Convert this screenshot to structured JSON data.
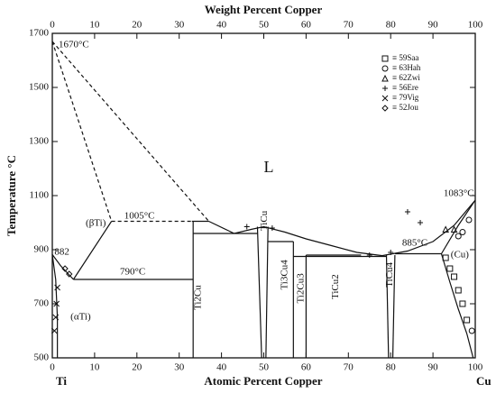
{
  "chart_data": {
    "type": "line",
    "title_top": "Weight Percent Copper",
    "xlabel": "Atomic Percent Copper",
    "ylabel": "Temperature °C",
    "end_labels": [
      "Ti",
      "Cu"
    ],
    "xlim": [
      0,
      100
    ],
    "xticks": [
      0,
      10,
      20,
      30,
      40,
      50,
      60,
      70,
      80,
      90,
      100
    ],
    "x2lim": [
      0,
      100
    ],
    "x2ticks": [
      0,
      10,
      20,
      30,
      40,
      50,
      60,
      70,
      80,
      90,
      100
    ],
    "ylim": [
      500,
      1700
    ],
    "yticks": [
      500,
      700,
      900,
      1100,
      1300,
      1500,
      1700
    ],
    "color": "#111111",
    "legend": "upper right",
    "lines": [
      {
        "style": "dashed",
        "x": [
          0,
          14
        ],
        "y": [
          1670,
          1005
        ]
      },
      {
        "style": "dashed",
        "x": [
          0,
          37
        ],
        "y": [
          1670,
          1005
        ]
      },
      {
        "style": "dashed",
        "x": [
          14,
          33
        ],
        "y": [
          1005,
          1005
        ]
      },
      {
        "style": "solid",
        "x": [
          33,
          37
        ],
        "y": [
          1005,
          1005
        ]
      },
      {
        "style": "solid",
        "x": [
          37,
          43,
          47,
          50,
          55,
          60,
          66,
          72,
          78,
          84,
          90,
          95,
          100
        ],
        "y": [
          1005,
          960,
          975,
          985,
          965,
          940,
          915,
          890,
          878,
          895,
          930,
          990,
          1083
        ]
      },
      {
        "style": "solid",
        "x": [
          33.3,
          33.3
        ],
        "y": [
          500,
          1005
        ]
      },
      {
        "style": "solid",
        "x": [
          33.3,
          48.5
        ],
        "y": [
          960,
          960
        ]
      },
      {
        "style": "solid",
        "x": [
          48.5,
          49.5
        ],
        "y": [
          985,
          500
        ]
      },
      {
        "style": "solid",
        "x": [
          51,
          50.5
        ],
        "y": [
          985,
          500
        ]
      },
      {
        "style": "solid",
        "x": [
          51,
          57
        ],
        "y": [
          930,
          930
        ]
      },
      {
        "style": "solid",
        "x": [
          57,
          57
        ],
        "y": [
          930,
          500
        ]
      },
      {
        "style": "solid",
        "x": [
          60,
          60
        ],
        "y": [
          880,
          500
        ]
      },
      {
        "style": "solid",
        "x": [
          57,
          79
        ],
        "y": [
          875,
          875
        ]
      },
      {
        "style": "solid",
        "x": [
          60,
          73
        ],
        "y": [
          880,
          880
        ]
      },
      {
        "style": "solid",
        "x": [
          79,
          79.5
        ],
        "y": [
          880,
          500
        ]
      },
      {
        "style": "solid",
        "x": [
          81,
          80.5
        ],
        "y": [
          880,
          500
        ]
      },
      {
        "style": "solid",
        "x": [
          81,
          92
        ],
        "y": [
          885,
          885
        ]
      },
      {
        "style": "solid",
        "x": [
          92,
          94,
          96,
          98,
          99.5
        ],
        "y": [
          885,
          780,
          680,
          590,
          500
        ]
      },
      {
        "style": "solid",
        "x": [
          92,
          96,
          100
        ],
        "y": [
          885,
          990,
          1083
        ]
      },
      {
        "style": "solid",
        "x": [
          5,
          33.3
        ],
        "y": [
          790,
          790
        ]
      },
      {
        "style": "solid",
        "x": [
          0,
          2,
          5
        ],
        "y": [
          882,
          840,
          790
        ]
      },
      {
        "style": "solid",
        "x": [
          0,
          0.8,
          1.2,
          1.2
        ],
        "y": [
          882,
          790,
          650,
          500
        ]
      },
      {
        "style": "solid",
        "x": [
          5,
          14
        ],
        "y": [
          790,
          1005
        ]
      }
    ],
    "series": [
      {
        "name": "≡ 59Saa",
        "marker": "square",
        "x": [
          93,
          94,
          95,
          96,
          97,
          98
        ],
        "y": [
          870,
          830,
          800,
          750,
          700,
          640
        ]
      },
      {
        "name": "≡ 63Hah",
        "marker": "circle",
        "x": [
          96,
          97,
          98.5,
          99.2
        ],
        "y": [
          950,
          965,
          1010,
          600
        ]
      },
      {
        "name": "≡ 62Zwi",
        "marker": "triangle",
        "x": [
          93,
          95
        ],
        "y": [
          975,
          975
        ]
      },
      {
        "name": "≡ 56Ere",
        "marker": "plus",
        "x": [
          46,
          52,
          75,
          80,
          84,
          87
        ],
        "y": [
          985,
          980,
          880,
          890,
          1040,
          1000
        ]
      },
      {
        "name": "≡ 79Vig",
        "marker": "x",
        "x": [
          0.5,
          0.8,
          1,
          1.2
        ],
        "y": [
          600,
          650,
          700,
          760
        ]
      },
      {
        "name": "≡ 52Jou",
        "marker": "diamond",
        "x": [
          3,
          4
        ],
        "y": [
          830,
          810
        ]
      }
    ],
    "annotations": [
      {
        "text": "1670°C",
        "x": 1.5,
        "y": 1657
      },
      {
        "text": "1005°C",
        "x": 17,
        "y": 1023
      },
      {
        "text": "790°C",
        "x": 16,
        "y": 817
      },
      {
        "text": "885°C",
        "x": 82.7,
        "y": 923
      },
      {
        "text": "1083°C",
        "x": 92.5,
        "y": 1107
      },
      {
        "text": "882",
        "x": 0.5,
        "y": 890
      },
      {
        "text": "(βTi)",
        "x": 7.9,
        "y": 997
      },
      {
        "text": "(αTi)",
        "x": 4.3,
        "y": 650
      },
      {
        "text": "(Cu)",
        "x": 94.2,
        "y": 880
      },
      {
        "text": "L",
        "x": 50,
        "y": 1200
      },
      {
        "text": "Ti2Cu",
        "x": 34.5,
        "y": 723,
        "rotate": true
      },
      {
        "text": "TiCu",
        "x": 50.2,
        "y": 1007,
        "rotate": true
      },
      {
        "text": "Ti3Cu4",
        "x": 55,
        "y": 807,
        "rotate": true
      },
      {
        "text": "Ti2Cu3",
        "x": 58.8,
        "y": 757,
        "rotate": true
      },
      {
        "text": "TiCu2",
        "x": 67,
        "y": 763,
        "rotate": true
      },
      {
        "text": "TiCu4",
        "x": 79.8,
        "y": 807,
        "rotate": true
      }
    ]
  }
}
